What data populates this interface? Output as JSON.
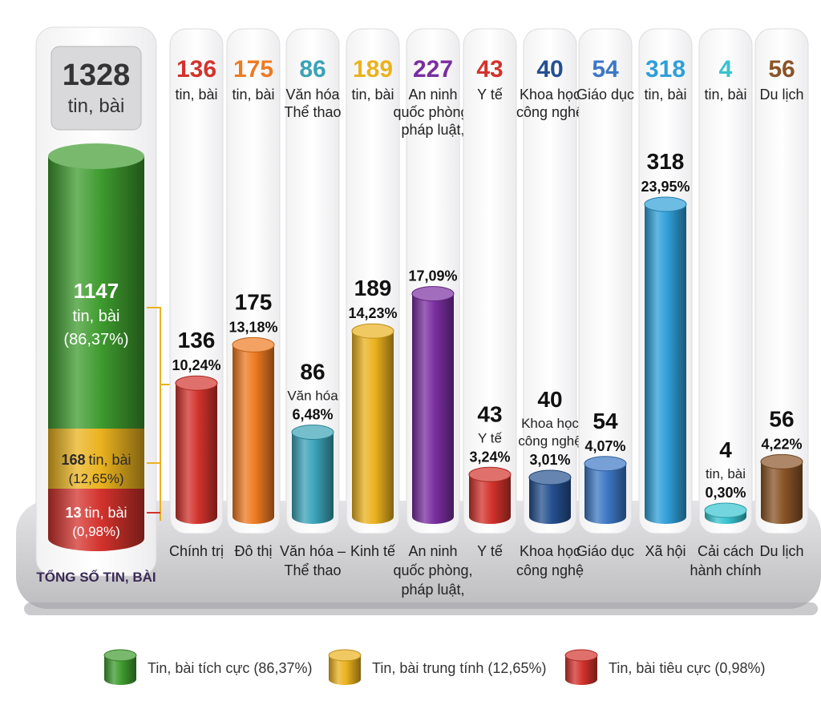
{
  "chart_data": {
    "type": "bar",
    "total": {
      "value": "1328",
      "unit": "tin, bài",
      "caption": "TỔNG SỐ TIN, BÀI"
    },
    "stack": [
      {
        "value": "1147",
        "unit": "tin, bài",
        "pct": "(86,37%)",
        "fraction": 0.8637,
        "color": "#3e9b2e"
      },
      {
        "value": "168",
        "unit": "tin, bài",
        "pct": "(12,65%)",
        "fraction": 0.1265,
        "color": "#eab21e"
      },
      {
        "value": "13",
        "unit": "tin, bài",
        "pct": "(0,98%)",
        "fraction": 0.0098,
        "color": "#d3322c"
      }
    ],
    "categories": [
      {
        "header_value": "136",
        "header_label": [
          "tin, bài"
        ],
        "bar_value": 136,
        "bar_text": "136",
        "sub": [],
        "pct": "10,24%",
        "bottom": [
          "Chính trị"
        ],
        "color": "#d3322c"
      },
      {
        "header_value": "175",
        "header_label": [
          "tin, bài"
        ],
        "bar_value": 175,
        "bar_text": "175",
        "sub": [],
        "pct": "13,18%",
        "bottom": [
          "Đô thị"
        ],
        "color": "#ee7a22"
      },
      {
        "header_value": "86",
        "header_label": [
          "Văn hóa",
          "Thể thao"
        ],
        "bar_value": 86,
        "bar_text": "86",
        "sub": [
          "Văn hóa"
        ],
        "pct": "6,48%",
        "bottom": [
          "Văn hóa –",
          "Thể thao"
        ],
        "color": "#3aa3b8"
      },
      {
        "header_value": "189",
        "header_label": [
          "tin, bài"
        ],
        "bar_value": 189,
        "bar_text": "189",
        "sub": [],
        "pct": "14,23%",
        "bottom": [
          "Kinh tế"
        ],
        "color": "#eab21e"
      },
      {
        "header_value": "227",
        "header_label": [
          "An ninh",
          "quốc phòng,",
          "pháp luật,"
        ],
        "bar_value": 227,
        "bar_text": "",
        "sub": [],
        "pct": "17,09%",
        "bottom": [
          "An ninh",
          "quốc phòng,",
          "pháp luật,"
        ],
        "color": "#7a2ea0"
      },
      {
        "header_value": "43",
        "header_label": [
          "Y tế"
        ],
        "bar_value": 43,
        "bar_text": "43",
        "sub": [
          "Y tế"
        ],
        "pct": "3,24%",
        "bottom": [
          "Y tế"
        ],
        "color": "#d3322c"
      },
      {
        "header_value": "40",
        "header_label": [
          "Khoa học",
          "công nghệ"
        ],
        "bar_value": 40,
        "bar_text": "40",
        "sub": [
          "Khoa học",
          "công nghệ"
        ],
        "pct": "3,01%",
        "bottom": [
          "Khoa học",
          "công nghệ"
        ],
        "color": "#25508f"
      },
      {
        "header_value": "54",
        "header_label": [
          "Giáo dục"
        ],
        "bar_value": 54,
        "bar_text": "54",
        "sub": [],
        "pct": "4,07%",
        "bottom": [
          "Giáo dục"
        ],
        "color": "#3d78c4"
      },
      {
        "header_value": "318",
        "header_label": [
          "tin, bài"
        ],
        "bar_value": 318,
        "bar_text": "318",
        "sub": [],
        "pct": "23,95%",
        "bottom": [
          "Xã hội"
        ],
        "color": "#2f9fd8"
      },
      {
        "header_value": "4",
        "header_label": [
          "tin, bài"
        ],
        "bar_value": 4,
        "bar_text": "4",
        "sub": [
          "tin, bài"
        ],
        "pct": "0,30%",
        "bottom": [
          "Cải cách",
          "hành chính"
        ],
        "color": "#37c3cf"
      },
      {
        "header_value": "56",
        "header_label": [
          "Du lịch"
        ],
        "bar_value": 56,
        "bar_text": "56",
        "sub": [],
        "pct": "4,22%",
        "bottom": [
          "Du lịch"
        ],
        "color": "#8a5426"
      }
    ],
    "legend": [
      {
        "label": "Tin, bài tích cực (86,37%)",
        "color": "#3e9b2e"
      },
      {
        "label": "Tin, bài trung tính (12,65%)",
        "color": "#eab21e"
      },
      {
        "label": "Tin, bài tiêu cực (0,98%)",
        "color": "#d3322c"
      }
    ],
    "legend_placement": "bottom",
    "ylim": [
      0,
      318
    ],
    "grid": false
  }
}
